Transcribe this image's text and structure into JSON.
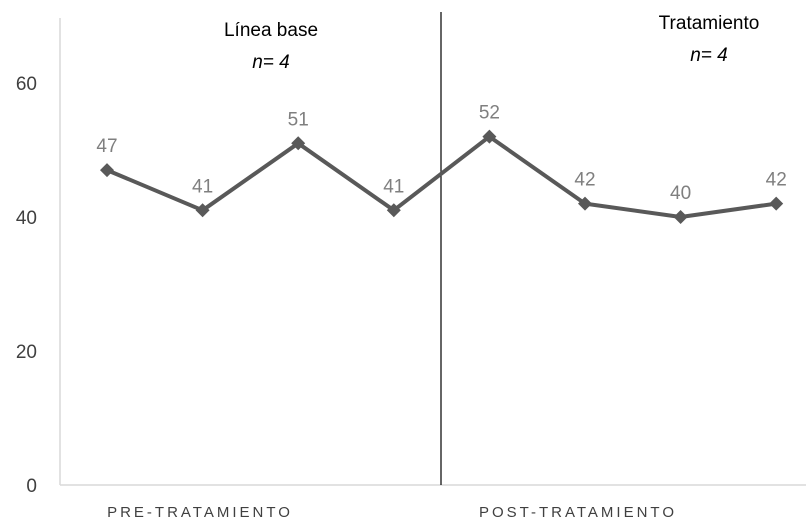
{
  "chart_data": {
    "type": "line",
    "x": [
      1,
      2,
      3,
      4,
      5,
      6,
      7,
      8
    ],
    "series": [
      {
        "values": [
          47,
          41,
          51,
          41,
          52,
          42,
          40,
          42
        ]
      }
    ],
    "data_labels": [
      "47",
      "41",
      "51",
      "41",
      "52",
      "42",
      "40",
      "42"
    ],
    "ylim": [
      0,
      70
    ],
    "yticks": [
      0,
      20,
      40,
      60
    ],
    "ytick_labels": [
      "0",
      "20",
      "40",
      "60"
    ],
    "phase_change_after": 4,
    "categories": [
      {
        "label": "PRE-TRATAMIENTO"
      },
      {
        "label": "POST-TRATAMIENTO"
      }
    ],
    "phases": [
      {
        "title": "Línea base",
        "n": "n= 4"
      },
      {
        "title": "Tratamiento",
        "n": "n= 4"
      }
    ],
    "grid": false,
    "colors": {
      "line": "#595959",
      "marker": "#595959",
      "data_label": "#7f7f7f",
      "axis": "#d9d9d9",
      "divider": "#000000",
      "tick_label": "#404040"
    }
  }
}
